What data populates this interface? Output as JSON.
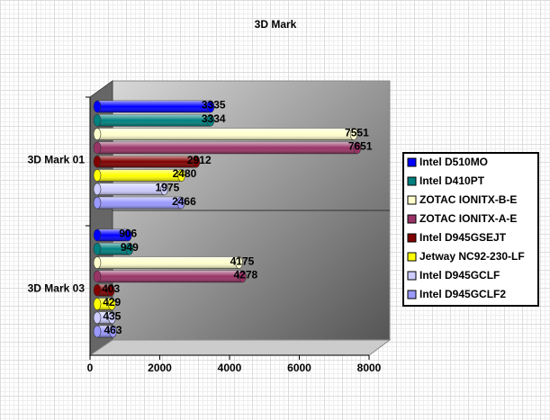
{
  "chart_data": {
    "type": "bar3d",
    "orientation": "horizontal",
    "title": "3D Mark",
    "categories": [
      "3D Mark 01",
      "3D Mark 03"
    ],
    "series": [
      {
        "name": "Intel D510MO",
        "color": "#0000ff",
        "values": [
          3335,
          906
        ]
      },
      {
        "name": "Intel D410PT",
        "color": "#008080",
        "values": [
          3334,
          949
        ]
      },
      {
        "name": "ZOTAC IONITX-B-E",
        "color": "#ffffcc",
        "values": [
          7551,
          4175
        ]
      },
      {
        "name": "ZOTAC IONITX-A-E",
        "color": "#993366",
        "values": [
          7651,
          4278
        ]
      },
      {
        "name": "Intel D945GSEJT",
        "color": "#800000",
        "values": [
          2912,
          403
        ]
      },
      {
        "name": "Jetway NC92-230-LF",
        "color": "#ffff00",
        "values": [
          2480,
          429
        ]
      },
      {
        "name": "Intel D945GCLF",
        "color": "#ccccff",
        "values": [
          1975,
          435
        ]
      },
      {
        "name": "Intel D945GCLF2",
        "color": "#9999ff",
        "values": [
          2466,
          463
        ]
      }
    ],
    "xlim": [
      0,
      8000
    ],
    "xticks": [
      0,
      2000,
      4000,
      6000,
      8000
    ],
    "legend": "right"
  }
}
